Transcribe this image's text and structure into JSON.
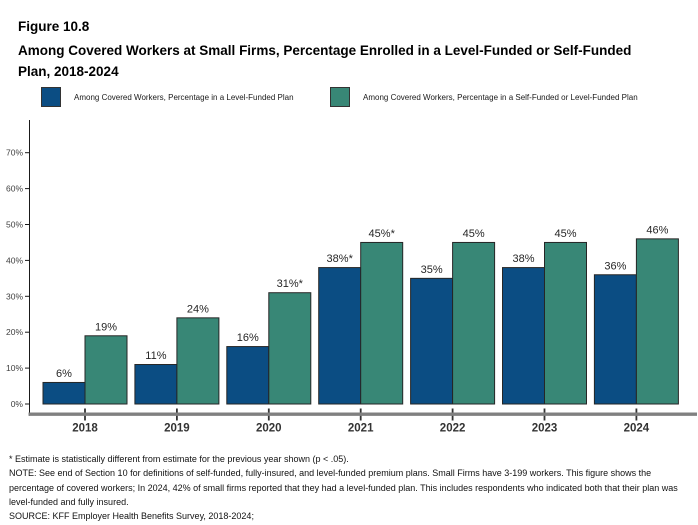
{
  "figure": {
    "number": "Figure 10.8",
    "title": "Among Covered Workers at Small Firms, Percentage Enrolled in a Level-Funded or Self-Funded Plan, 2018-2024"
  },
  "legend": [
    {
      "label": "Among Covered Workers, Percentage in a Level-Funded Plan",
      "color": "#0B4D83"
    },
    {
      "label": "Among Covered Workers, Percentage in a Self-Funded or Level-Funded Plan",
      "color": "#388776"
    }
  ],
  "chart_data": {
    "type": "bar",
    "categories": [
      "2018",
      "2019",
      "2020",
      "2021",
      "2022",
      "2023",
      "2024"
    ],
    "series": [
      {
        "name": "Among Covered Workers, Percentage in a Level-Funded Plan",
        "color": "#0B4D83",
        "values": [
          6,
          11,
          16,
          38,
          35,
          38,
          36
        ],
        "labels": [
          "6%",
          "11%",
          "16%",
          "38%*",
          "35%",
          "38%",
          "36%"
        ]
      },
      {
        "name": "Among Covered Workers, Percentage in a Self-Funded or Level-Funded Plan",
        "color": "#388776",
        "values": [
          19,
          24,
          31,
          45,
          45,
          45,
          46
        ],
        "labels": [
          "19%",
          "24%",
          "31%*",
          "45%*",
          "45%",
          "45%",
          "46%"
        ]
      }
    ],
    "title": "Among Covered Workers at Small Firms, Percentage Enrolled in a Level-Funded or Self-Funded Plan, 2018-2024",
    "xlabel": "",
    "ylabel": "",
    "ylim": [
      0,
      79
    ],
    "yticks": [
      "0%",
      "10%",
      "20%",
      "30%",
      "40%",
      "50%",
      "60%",
      "70%"
    ],
    "grid": false,
    "legend_position": "top"
  },
  "footnotes": {
    "asterisk": "* Estimate is statistically different from estimate for the previous year shown (p < .05).",
    "note": "NOTE: See end of Section 10 for definitions of self-funded, fully-insured, and level-funded premium plans. Small Firms have 3-199 workers. This figure shows the percentage of covered workers; In 2024, 42% of small firms reported that they had a level-funded plan. This includes respondents who indicated both that their plan was level-funded and fully insured.",
    "source": "SOURCE: KFF Employer Health Benefits Survey, 2018-2024;"
  }
}
